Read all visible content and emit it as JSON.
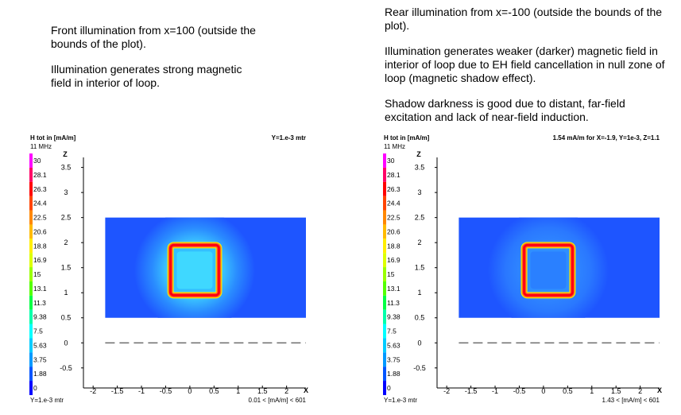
{
  "captions": {
    "left": [
      "Front illumination from x=100 (outside the bounds of the plot).",
      "Illumination generates strong magnetic field in interior of loop."
    ],
    "right": [
      "Rear illumination from x=-100 (outside the bounds of the plot).",
      "Illumination generates weaker (darker) magnetic field in interior of loop due to EH field cancellation in null zone of loop (magnetic shadow effect).",
      "Shadow darkness is good due to distant, far-field excitation and lack of near-field induction."
    ]
  },
  "colors": {
    "field_background": "#1e55ff",
    "loop_core": "#ff0000",
    "axis": "#000000"
  },
  "chart_data": [
    {
      "type": "heatmap",
      "title": "H tot in [mA/m]",
      "frequency": "11 MHz",
      "header_right": "Y=1.e-3 mtr",
      "footer_left": "Y=1.e-3 mtr",
      "footer_right": "0.01 < [mA/m] < 601",
      "xlabel": "X",
      "ylabel": "Z",
      "xlim": [
        -2.2,
        2.4
      ],
      "ylim": [
        -0.9,
        3.7
      ],
      "x_ticks": [
        -2,
        -1.5,
        -1,
        -0.5,
        0,
        0.5,
        1,
        1.5,
        2
      ],
      "x_tick_labels": [
        "-2",
        "-1.5",
        "-1",
        "-0.5",
        "0",
        "0.5",
        "1",
        "1.5",
        "2"
      ],
      "y_ticks": [
        -0.5,
        0,
        0.5,
        1,
        1.5,
        2,
        2.5,
        3,
        3.5
      ],
      "y_tick_labels": [
        "-0.5",
        "0",
        "0.5",
        "1",
        "1.5",
        "2",
        "2.5",
        "3",
        "3.5"
      ],
      "colorbar_labels": [
        "30",
        "28.1",
        "26.3",
        "24.4",
        "22.5",
        "20.6",
        "18.8",
        "16.9",
        "15",
        "13.1",
        "11.3",
        "9.38",
        "7.5",
        "5.63",
        "3.75",
        "1.88",
        "0"
      ],
      "colorbar_colors": [
        "#ff00ff",
        "#ff0066",
        "#ff0000",
        "#ff4400",
        "#ff8800",
        "#ffbb00",
        "#ffee00",
        "#ddff00",
        "#99ff00",
        "#55ff00",
        "#00ff44",
        "#00ffaa",
        "#00ffff",
        "#00ccff",
        "#0099ff",
        "#0055ff",
        "#0000ff"
      ],
      "field_extent": {
        "x": [
          -1.75,
          2.4
        ],
        "z": [
          0.5,
          2.5
        ]
      },
      "loop": {
        "x": [
          -0.4,
          0.6
        ],
        "z": [
          0.95,
          1.95
        ]
      },
      "ground_z": 0,
      "field_style": "strong"
    },
    {
      "type": "heatmap",
      "title": "H tot in [mA/m]",
      "frequency": "11 MHz",
      "header_right": "1.54 mA/m for X=-1.9, Y=1e-3, Z=1.1",
      "footer_left": "Y=1.e-3 mtr",
      "footer_right": "1.43 < [mA/m] < 601",
      "xlabel": "X",
      "ylabel": "Z",
      "xlim": [
        -2.2,
        2.4
      ],
      "ylim": [
        -0.9,
        3.7
      ],
      "x_ticks": [
        -2,
        -1.5,
        -1,
        -0.5,
        0,
        0.5,
        1,
        1.5,
        2
      ],
      "x_tick_labels": [
        "-2",
        "-1.5",
        "-1",
        "-0.5",
        "0",
        "0.5",
        "1",
        "1.5",
        "2"
      ],
      "y_ticks": [
        -0.5,
        0,
        0.5,
        1,
        1.5,
        2,
        2.5,
        3,
        3.5
      ],
      "y_tick_labels": [
        "-0.5",
        "0",
        "0.5",
        "1",
        "1.5",
        "2",
        "2.5",
        "3",
        "3.5"
      ],
      "colorbar_labels": [
        "30",
        "28.1",
        "26.3",
        "24.4",
        "22.5",
        "20.6",
        "18.8",
        "16.9",
        "15",
        "13.1",
        "11.3",
        "9.38",
        "7.5",
        "5.63",
        "3.75",
        "1.88",
        "0"
      ],
      "colorbar_colors": [
        "#ff00ff",
        "#ff0066",
        "#ff0000",
        "#ff4400",
        "#ff8800",
        "#ffbb00",
        "#ffee00",
        "#ddff00",
        "#99ff00",
        "#55ff00",
        "#00ff44",
        "#00ffaa",
        "#00ffff",
        "#00ccff",
        "#0099ff",
        "#0055ff",
        "#0000ff"
      ],
      "field_extent": {
        "x": [
          -1.75,
          2.4
        ],
        "z": [
          0.5,
          2.5
        ]
      },
      "loop": {
        "x": [
          -0.4,
          0.6
        ],
        "z": [
          0.95,
          1.95
        ]
      },
      "ground_z": 0,
      "field_style": "weak"
    }
  ]
}
